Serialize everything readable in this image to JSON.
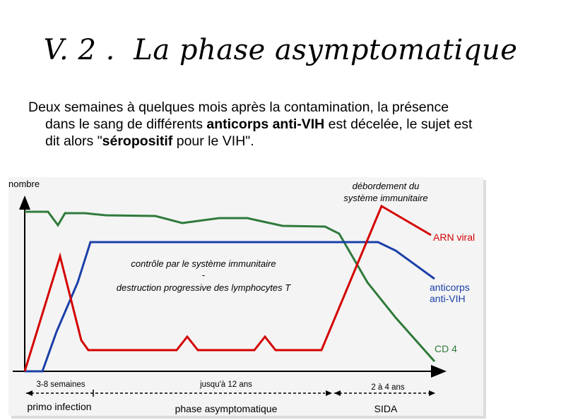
{
  "slide": {
    "title": "V. 2 .  La phase asymptomatique",
    "paragraph": {
      "line1": "Deux semaines à quelques mois après la contamination, la présence",
      "line2_pre": "dans le sang de différents ",
      "line2_bold": "anticorps anti-VIH",
      "line2_post": " est décelée, le sujet est",
      "line3_pre": "dit alors \"",
      "line3_bold": "séropositif",
      "line3_post": " pour le VIH\"."
    }
  },
  "figure": {
    "y_axis_label": "nombre",
    "annotation_top_line1": "débordement du",
    "annotation_top_line2": "système immunitaire",
    "annotation_mid_line1": "contrôle par le système immunitaire",
    "annotation_mid_dash": "-",
    "annotation_mid_line2": "destruction progressive des lymphocytes T",
    "series": {
      "arn": {
        "label": "ARN viral",
        "color": "#d40000"
      },
      "anticorps": {
        "label_line1": "anticorps",
        "label_line2": "anti-VIH",
        "color": "#1a3fa8"
      },
      "cd4": {
        "label": "CD 4",
        "color": "#2f7a3a"
      }
    },
    "durations": [
      "3-8 semaines",
      "jusqu'à 12 ans",
      "2 à 4 ans"
    ],
    "phases": [
      "primo infection",
      "phase asymptomatique",
      "SIDA"
    ],
    "colors": {
      "frame_bg": "#f4f4f4",
      "axis": "#000000"
    }
  }
}
